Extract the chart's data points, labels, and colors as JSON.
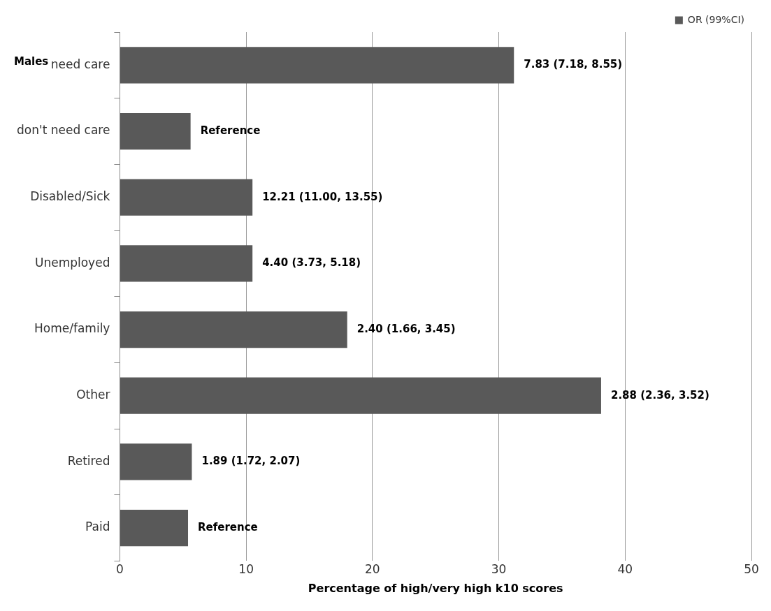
{
  "chart_data": {
    "type": "bar",
    "orientation": "horizontal",
    "xlabel": "Percentage of high/very high k10 scores",
    "categories": [
      "need care",
      "don't need care",
      "Disabled/Sick",
      "Unemployed",
      "Home/family",
      "Other",
      "Retired",
      "Paid"
    ],
    "series": [
      {
        "name": "OR (99%CI)",
        "color": "#595959",
        "values": [
          31.2,
          5.6,
          10.5,
          10.5,
          18.0,
          38.1,
          5.7,
          5.4
        ]
      }
    ],
    "xlim": [
      0,
      50
    ],
    "xticks": [
      0,
      10,
      20,
      30,
      40,
      50
    ],
    "grid": "x",
    "legend": "top right",
    "annotations": [
      "Males",
      {
        "text": "7.83 (7.18, 8.55)",
        "x": 31.2,
        "y": "need care"
      },
      {
        "text": "Reference",
        "x": 5.6,
        "y": "don't need care"
      },
      {
        "text": "12.21 (11.00, 13.55)",
        "x": 10.5,
        "y": "Disabled/Sick"
      },
      {
        "text": "4.40 (3.73, 5.18)",
        "x": 10.5,
        "y": "Unemployed"
      },
      {
        "text": "2.40 (1.66, 3.45)",
        "x": 18.0,
        "y": "Home/family"
      },
      {
        "text": "2.88 (2.36, 3.52)",
        "x": 38.1,
        "y": "Other"
      },
      {
        "text": "1.89 (1.72, 2.07)",
        "x": 5.7,
        "y": "Retired"
      },
      {
        "text": "Reference",
        "x": 5.4,
        "y": "Paid"
      }
    ]
  }
}
